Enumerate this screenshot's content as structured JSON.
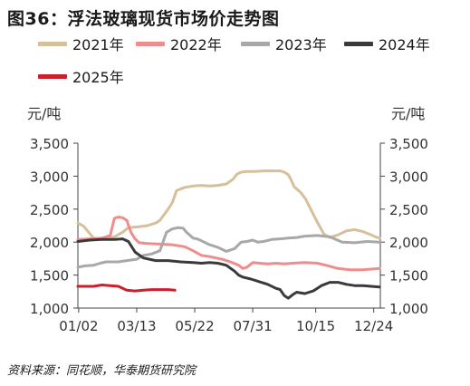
{
  "page": {
    "title": "图36：浮法玻璃现货市场价走势图",
    "source": "资料来源：同花顺，华泰期货研究院"
  },
  "chart_data": {
    "type": "line",
    "title": "图36：浮法玻璃现货市场价走势图",
    "ylabel_left": "元/吨",
    "ylabel_right": "元/吨",
    "ylim": [
      1000,
      3500
    ],
    "yticks": [
      "1,000",
      "1,500",
      "2,000",
      "2,500",
      "3,000",
      "3,500"
    ],
    "ytick_values": [
      1000,
      1500,
      2000,
      2500,
      3000,
      3500
    ],
    "xlim": [
      1,
      366
    ],
    "xticks": [
      "01/02",
      "03/13",
      "05/22",
      "07/31",
      "10/15",
      "12/24"
    ],
    "xtick_values": [
      2,
      72,
      142,
      212,
      288,
      358
    ],
    "grid": false,
    "legend_position": "top",
    "series": [
      {
        "name": "2021年",
        "color": "#d6c09a",
        "x": [
          1,
          8,
          14,
          20,
          30,
          45,
          55,
          62,
          72,
          85,
          95,
          100,
          104,
          110,
          115,
          120,
          130,
          140,
          150,
          160,
          170,
          180,
          188,
          193,
          198,
          205,
          215,
          225,
          235,
          245,
          250,
          255,
          258,
          262,
          270,
          276,
          282,
          290,
          298,
          305,
          315,
          325,
          335,
          345,
          355,
          360,
          365
        ],
        "y": [
          2290,
          2240,
          2150,
          2060,
          2050,
          2080,
          2150,
          2220,
          2230,
          2250,
          2290,
          2330,
          2400,
          2500,
          2600,
          2780,
          2830,
          2850,
          2860,
          2850,
          2860,
          2880,
          2950,
          3030,
          3060,
          3070,
          3070,
          3080,
          3080,
          3080,
          3060,
          3020,
          2950,
          2840,
          2750,
          2650,
          2500,
          2300,
          2120,
          2070,
          2110,
          2170,
          2190,
          2160,
          2110,
          2080,
          2060
        ]
      },
      {
        "name": "2022年",
        "color": "#ef8d8d",
        "x": [
          1,
          15,
          30,
          40,
          45,
          50,
          55,
          60,
          65,
          70,
          75,
          85,
          100,
          115,
          130,
          140,
          150,
          160,
          175,
          185,
          195,
          200,
          205,
          212,
          220,
          230,
          240,
          250,
          260,
          275,
          290,
          300,
          315,
          330,
          345,
          355,
          365
        ],
        "y": [
          2040,
          2050,
          2060,
          2100,
          2360,
          2380,
          2370,
          2330,
          2150,
          2050,
          1990,
          1980,
          1970,
          1960,
          1930,
          1870,
          1800,
          1780,
          1740,
          1700,
          1650,
          1600,
          1620,
          1690,
          1680,
          1670,
          1680,
          1670,
          1680,
          1690,
          1680,
          1650,
          1600,
          1580,
          1580,
          1590,
          1600
        ]
      },
      {
        "name": "2023年",
        "color": "#a8a8a8",
        "x": [
          1,
          10,
          20,
          28,
          35,
          50,
          60,
          72,
          80,
          90,
          100,
          108,
          115,
          122,
          128,
          132,
          140,
          145,
          150,
          160,
          170,
          180,
          190,
          198,
          205,
          212,
          218,
          225,
          235,
          245,
          255,
          265,
          275,
          290,
          305,
          320,
          335,
          350,
          365
        ],
        "y": [
          1620,
          1640,
          1650,
          1680,
          1700,
          1700,
          1720,
          1740,
          1800,
          1820,
          1870,
          2150,
          2200,
          2220,
          2210,
          2150,
          2060,
          2050,
          2020,
          1960,
          1920,
          1860,
          1900,
          2000,
          2010,
          2030,
          2000,
          2010,
          2040,
          2050,
          2060,
          2070,
          2090,
          2100,
          2080,
          2000,
          1990,
          2010,
          2000
        ]
      },
      {
        "name": "2024年",
        "color": "#3a3a3a",
        "x": [
          1,
          15,
          30,
          45,
          55,
          62,
          70,
          80,
          95,
          110,
          125,
          140,
          150,
          160,
          170,
          180,
          190,
          195,
          200,
          210,
          220,
          230,
          240,
          245,
          250,
          255,
          260,
          265,
          275,
          285,
          295,
          305,
          315,
          325,
          335,
          345,
          355,
          365
        ],
        "y": [
          2010,
          2030,
          2040,
          2040,
          2050,
          2010,
          1850,
          1760,
          1720,
          1720,
          1700,
          1690,
          1680,
          1690,
          1680,
          1650,
          1560,
          1500,
          1470,
          1440,
          1400,
          1360,
          1300,
          1280,
          1190,
          1150,
          1200,
          1240,
          1220,
          1260,
          1340,
          1390,
          1390,
          1360,
          1340,
          1340,
          1330,
          1320
        ]
      },
      {
        "name": "2025年",
        "color": "#cc1f2d",
        "x": [
          1,
          10,
          20,
          30,
          40,
          50,
          60,
          70,
          80,
          90,
          100,
          110,
          118
        ],
        "y": [
          1330,
          1330,
          1330,
          1350,
          1340,
          1330,
          1270,
          1260,
          1270,
          1280,
          1280,
          1280,
          1270
        ]
      }
    ]
  }
}
